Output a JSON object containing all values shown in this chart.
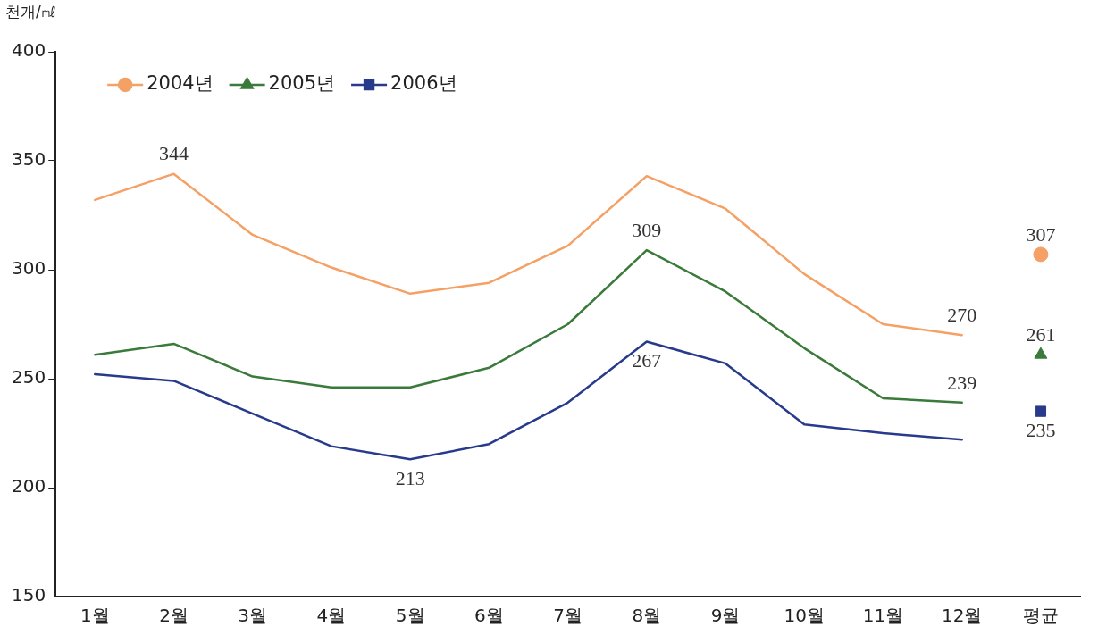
{
  "chart_data": {
    "type": "line",
    "ylabel": "천개/㎖",
    "categories": [
      "1월",
      "2월",
      "3월",
      "4월",
      "5월",
      "6월",
      "7월",
      "8월",
      "9월",
      "10월",
      "11월",
      "12월",
      "평균"
    ],
    "ylim": [
      150,
      400
    ],
    "yticks": [
      150,
      200,
      250,
      300,
      350,
      400
    ],
    "grid": false,
    "legend": "top left",
    "line_style": "solid",
    "series": [
      {
        "name": "2004년",
        "color": "#f5a064",
        "marker": "none",
        "values": [
          332,
          344,
          316,
          301,
          289,
          294,
          311,
          343,
          328,
          298,
          275,
          270,
          null
        ],
        "value_labels": [
          null,
          "344",
          null,
          null,
          null,
          null,
          null,
          null,
          null,
          null,
          null,
          "270",
          null
        ]
      },
      {
        "name": "2005년",
        "color": "#3a7a3a",
        "marker": "none",
        "values": [
          261,
          266,
          251,
          246,
          246,
          255,
          275,
          309,
          290,
          264,
          241,
          239,
          null
        ],
        "value_labels": [
          null,
          null,
          null,
          null,
          null,
          null,
          null,
          "309",
          null,
          null,
          null,
          "239",
          null
        ]
      },
      {
        "name": "2006년",
        "color": "#283a8c",
        "marker": "none",
        "values": [
          252,
          249,
          234,
          219,
          213,
          220,
          239,
          267,
          257,
          229,
          225,
          222,
          null
        ],
        "value_labels": [
          null,
          null,
          null,
          null,
          "213",
          null,
          null,
          "267",
          null,
          null,
          null,
          null,
          null
        ]
      },
      {
        "type": "scatter",
        "color": "#f5a064",
        "marker": "circle",
        "values": [
          null,
          null,
          null,
          null,
          null,
          null,
          null,
          null,
          null,
          null,
          null,
          null,
          307
        ],
        "value_labels": [
          null,
          null,
          null,
          null,
          null,
          null,
          null,
          null,
          null,
          null,
          null,
          null,
          "307"
        ]
      },
      {
        "type": "scatter",
        "color": "#3a7a3a",
        "marker": "triangle",
        "values": [
          null,
          null,
          null,
          null,
          null,
          null,
          null,
          null,
          null,
          null,
          null,
          null,
          261
        ],
        "value_labels": [
          null,
          null,
          null,
          null,
          null,
          null,
          null,
          null,
          null,
          null,
          null,
          null,
          "261"
        ]
      },
      {
        "type": "scatter",
        "color": "#283a8c",
        "marker": "square",
        "values": [
          null,
          null,
          null,
          null,
          null,
          null,
          null,
          null,
          null,
          null,
          null,
          null,
          235
        ],
        "value_labels": [
          null,
          null,
          null,
          null,
          null,
          null,
          null,
          null,
          null,
          null,
          null,
          null,
          "235"
        ]
      }
    ]
  }
}
